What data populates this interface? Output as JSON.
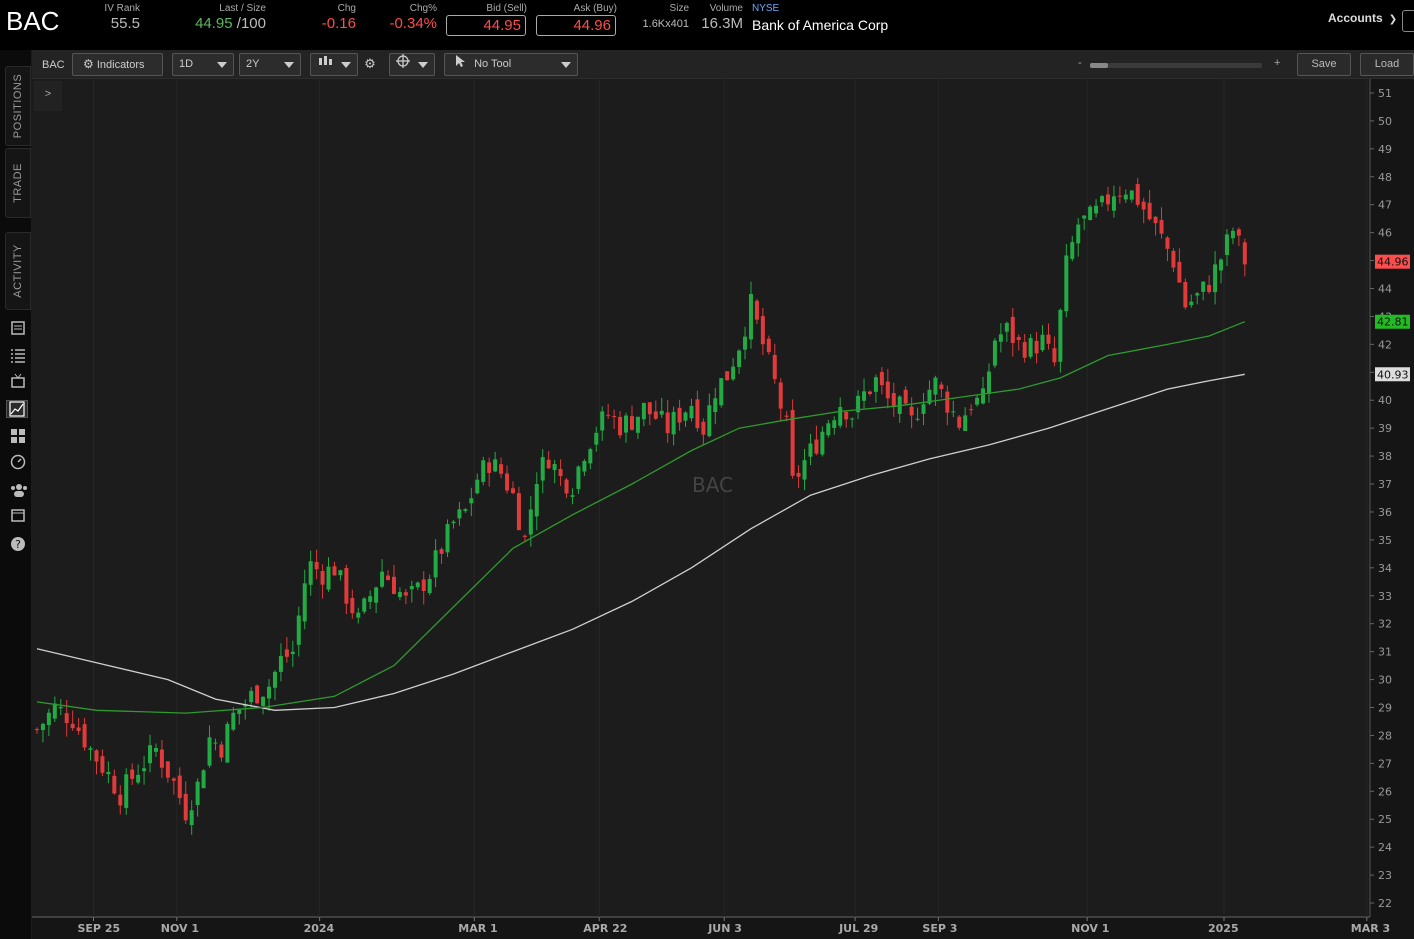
{
  "header": {
    "symbol": "BAC",
    "iv_rank_label": "IV Rank",
    "iv_rank": "55.5",
    "last_size_label": "Last / Size",
    "last": "44.95",
    "size_suffix": "/100",
    "chg_label": "Chg",
    "chg": "-0.16",
    "chg_pct_label": "Chg%",
    "chg_pct": "-0.34%",
    "bid_label": "Bid (Sell)",
    "bid": "44.95",
    "ask_label": "Ask (Buy)",
    "ask": "44.96",
    "size_label": "Size",
    "size": "1.6Kx401",
    "volume_label": "Volume",
    "volume": "16.3M",
    "exchange": "NYSE",
    "company": "Bank of America Corp",
    "accounts_label": "Accounts"
  },
  "sidebar": {
    "tabs": [
      "POSITIONS",
      "TRADE",
      "ACTIVITY"
    ]
  },
  "toolbar": {
    "symbol": "BAC",
    "indicators_label": "Indicators",
    "interval": "1D",
    "range": "2Y",
    "tool": "No Tool",
    "zoom_minus": "-",
    "zoom_plus": "+",
    "save_label": "Save",
    "load_label": "Load",
    "expand_label": ">"
  },
  "chart_data": {
    "type": "candlestick",
    "watermark": "BAC",
    "x_ticks": [
      "SEP 25",
      "NOV 1",
      "2024",
      "MAR 1",
      "APR 22",
      "JUN 3",
      "JUL 29",
      "SEP 3",
      "NOV 1",
      "2025",
      "MAR 3"
    ],
    "y_ticks": [
      22,
      23,
      24,
      25,
      26,
      27,
      28,
      29,
      30,
      31,
      32,
      33,
      34,
      35,
      36,
      37,
      38,
      39,
      40,
      41,
      42,
      43,
      44,
      45,
      46,
      47,
      48,
      49,
      50,
      51
    ],
    "ylim": [
      21.5,
      51.5
    ],
    "price_tags": [
      {
        "value": "44.96",
        "price": 44.96,
        "color": "#ff4c4c"
      },
      {
        "value": "42.81",
        "price": 42.81,
        "color": "#22bb22"
      },
      {
        "value": "40.93",
        "price": 40.93,
        "color": "#dddddd"
      }
    ],
    "colors": {
      "up": "#22aa44",
      "down": "#e03a3a",
      "ma_green": "#2e9a2e",
      "ma_grey": "#cfcfcf"
    },
    "close_path": [
      [
        0,
        28.2
      ],
      [
        3,
        29.0
      ],
      [
        6,
        28.6
      ],
      [
        9,
        27.5
      ],
      [
        12,
        26.6
      ],
      [
        14,
        25.9
      ],
      [
        17,
        26.8
      ],
      [
        20,
        27.5
      ],
      [
        23,
        26.3
      ],
      [
        25,
        25.3
      ],
      [
        27,
        26.2
      ],
      [
        29,
        27.9
      ],
      [
        31,
        27.6
      ],
      [
        33,
        28.7
      ],
      [
        36,
        29.4
      ],
      [
        39,
        29.8
      ],
      [
        41,
        30.7
      ],
      [
        43,
        31.0
      ],
      [
        45,
        33.5
      ],
      [
        46,
        34.1
      ],
      [
        48,
        33.8
      ],
      [
        50,
        34.0
      ],
      [
        52,
        33.0
      ],
      [
        54,
        32.1
      ],
      [
        56,
        33.0
      ],
      [
        58,
        33.9
      ],
      [
        60,
        33.4
      ],
      [
        62,
        32.8
      ],
      [
        64,
        33.2
      ],
      [
        66,
        33.8
      ],
      [
        68,
        34.7
      ],
      [
        70,
        35.6
      ],
      [
        72,
        36.0
      ],
      [
        74,
        37.2
      ],
      [
        76,
        37.8
      ],
      [
        78,
        37.4
      ],
      [
        80,
        36.6
      ],
      [
        82,
        35.0
      ],
      [
        84,
        37.3
      ],
      [
        86,
        38.0
      ],
      [
        88,
        37.2
      ],
      [
        90,
        37.0
      ],
      [
        92,
        38.2
      ],
      [
        94,
        39.0
      ],
      [
        96,
        39.5
      ],
      [
        98,
        39.1
      ],
      [
        100,
        39.3
      ],
      [
        102,
        39.7
      ],
      [
        104,
        39.4
      ],
      [
        106,
        39.0
      ],
      [
        108,
        39.5
      ],
      [
        110,
        39.9
      ],
      [
        112,
        39.0
      ],
      [
        114,
        40.4
      ],
      [
        116,
        40.9
      ],
      [
        118,
        42.0
      ],
      [
        120,
        43.4
      ],
      [
        122,
        42.0
      ],
      [
        124,
        40.6
      ],
      [
        126,
        39.0
      ],
      [
        127,
        37.0
      ],
      [
        129,
        37.8
      ],
      [
        131,
        38.5
      ],
      [
        133,
        39.3
      ],
      [
        135,
        39.9
      ],
      [
        137,
        39.5
      ],
      [
        139,
        40.2
      ],
      [
        141,
        40.7
      ],
      [
        143,
        40.0
      ],
      [
        145,
        39.7
      ],
      [
        147,
        39.2
      ],
      [
        149,
        40.2
      ],
      [
        151,
        40.6
      ],
      [
        153,
        39.9
      ],
      [
        155,
        39.2
      ],
      [
        157,
        39.9
      ],
      [
        159,
        40.0
      ],
      [
        161,
        42.2
      ],
      [
        163,
        42.5
      ],
      [
        165,
        42.0
      ],
      [
        167,
        41.9
      ],
      [
        169,
        42.1
      ],
      [
        171,
        41.3
      ],
      [
        173,
        44.8
      ],
      [
        175,
        46.3
      ],
      [
        177,
        46.5
      ],
      [
        179,
        46.9
      ],
      [
        181,
        47.5
      ],
      [
        183,
        47.6
      ],
      [
        185,
        47.2
      ],
      [
        187,
        46.5
      ],
      [
        189,
        45.8
      ],
      [
        191,
        45.0
      ],
      [
        193,
        43.4
      ],
      [
        195,
        43.7
      ],
      [
        197,
        44.2
      ],
      [
        199,
        45.1
      ],
      [
        201,
        46.1
      ],
      [
        203,
        45.0
      ]
    ],
    "ma_green": [
      [
        0,
        29.2
      ],
      [
        10,
        28.9
      ],
      [
        25,
        28.8
      ],
      [
        38,
        29.0
      ],
      [
        50,
        29.4
      ],
      [
        60,
        30.5
      ],
      [
        70,
        32.6
      ],
      [
        80,
        34.7
      ],
      [
        90,
        35.9
      ],
      [
        100,
        37.0
      ],
      [
        110,
        38.2
      ],
      [
        118,
        39.0
      ],
      [
        126,
        39.3
      ],
      [
        135,
        39.6
      ],
      [
        145,
        39.8
      ],
      [
        155,
        40.1
      ],
      [
        165,
        40.4
      ],
      [
        172,
        40.8
      ],
      [
        180,
        41.6
      ],
      [
        190,
        42.0
      ],
      [
        197,
        42.3
      ],
      [
        203,
        42.81
      ]
    ],
    "ma_grey": [
      [
        0,
        31.1
      ],
      [
        10,
        30.6
      ],
      [
        22,
        30.0
      ],
      [
        30,
        29.3
      ],
      [
        40,
        28.9
      ],
      [
        50,
        29.0
      ],
      [
        60,
        29.5
      ],
      [
        70,
        30.2
      ],
      [
        80,
        31.0
      ],
      [
        90,
        31.8
      ],
      [
        100,
        32.8
      ],
      [
        110,
        34.0
      ],
      [
        120,
        35.4
      ],
      [
        130,
        36.6
      ],
      [
        140,
        37.3
      ],
      [
        150,
        37.9
      ],
      [
        160,
        38.4
      ],
      [
        170,
        39.0
      ],
      [
        180,
        39.7
      ],
      [
        190,
        40.4
      ],
      [
        197,
        40.7
      ],
      [
        203,
        40.93
      ]
    ],
    "n_bars": 204
  }
}
